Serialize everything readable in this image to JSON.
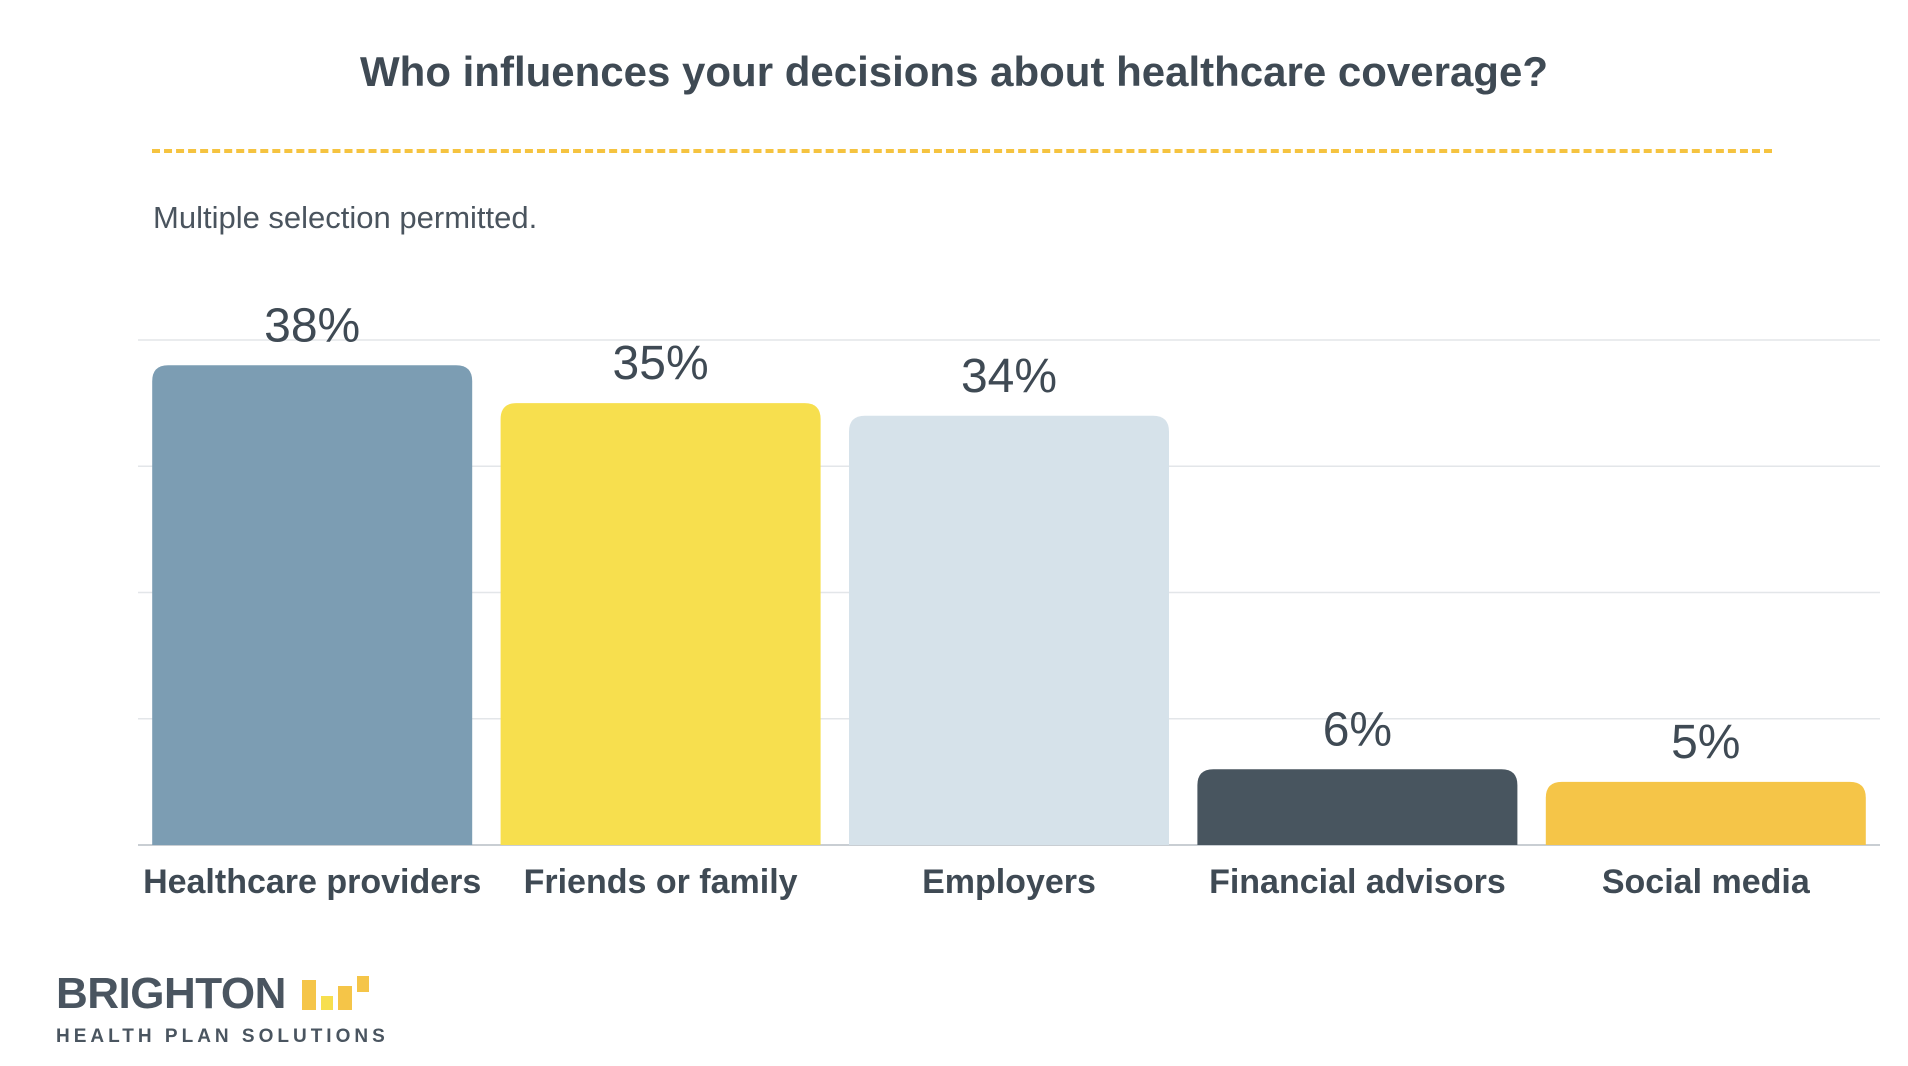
{
  "chart_data": {
    "type": "bar",
    "title": "Who influences your decisions about healthcare coverage?",
    "subtitle": "Multiple selection permitted.",
    "categories": [
      "Healthcare providers",
      "Friends or family",
      "Employers",
      "Financial advisors",
      "Social media"
    ],
    "values": [
      38,
      35,
      34,
      6,
      5
    ],
    "value_labels": [
      "38%",
      "35%",
      "34%",
      "6%",
      "5%"
    ],
    "bar_colors": [
      "#7c9db3",
      "#f7df4e",
      "#d6e2ea",
      "#48555f",
      "#f5c548"
    ],
    "ylim": [
      0,
      40
    ],
    "grid": true,
    "legend": "none"
  },
  "colors": {
    "title": "#3f4a54",
    "text": "#4a545e",
    "accent": "#f5c340",
    "grid": "#e3e6e9"
  },
  "logo": {
    "name": "BRIGHTON",
    "tagline": "HEALTH PLAN SOLUTIONS"
  }
}
